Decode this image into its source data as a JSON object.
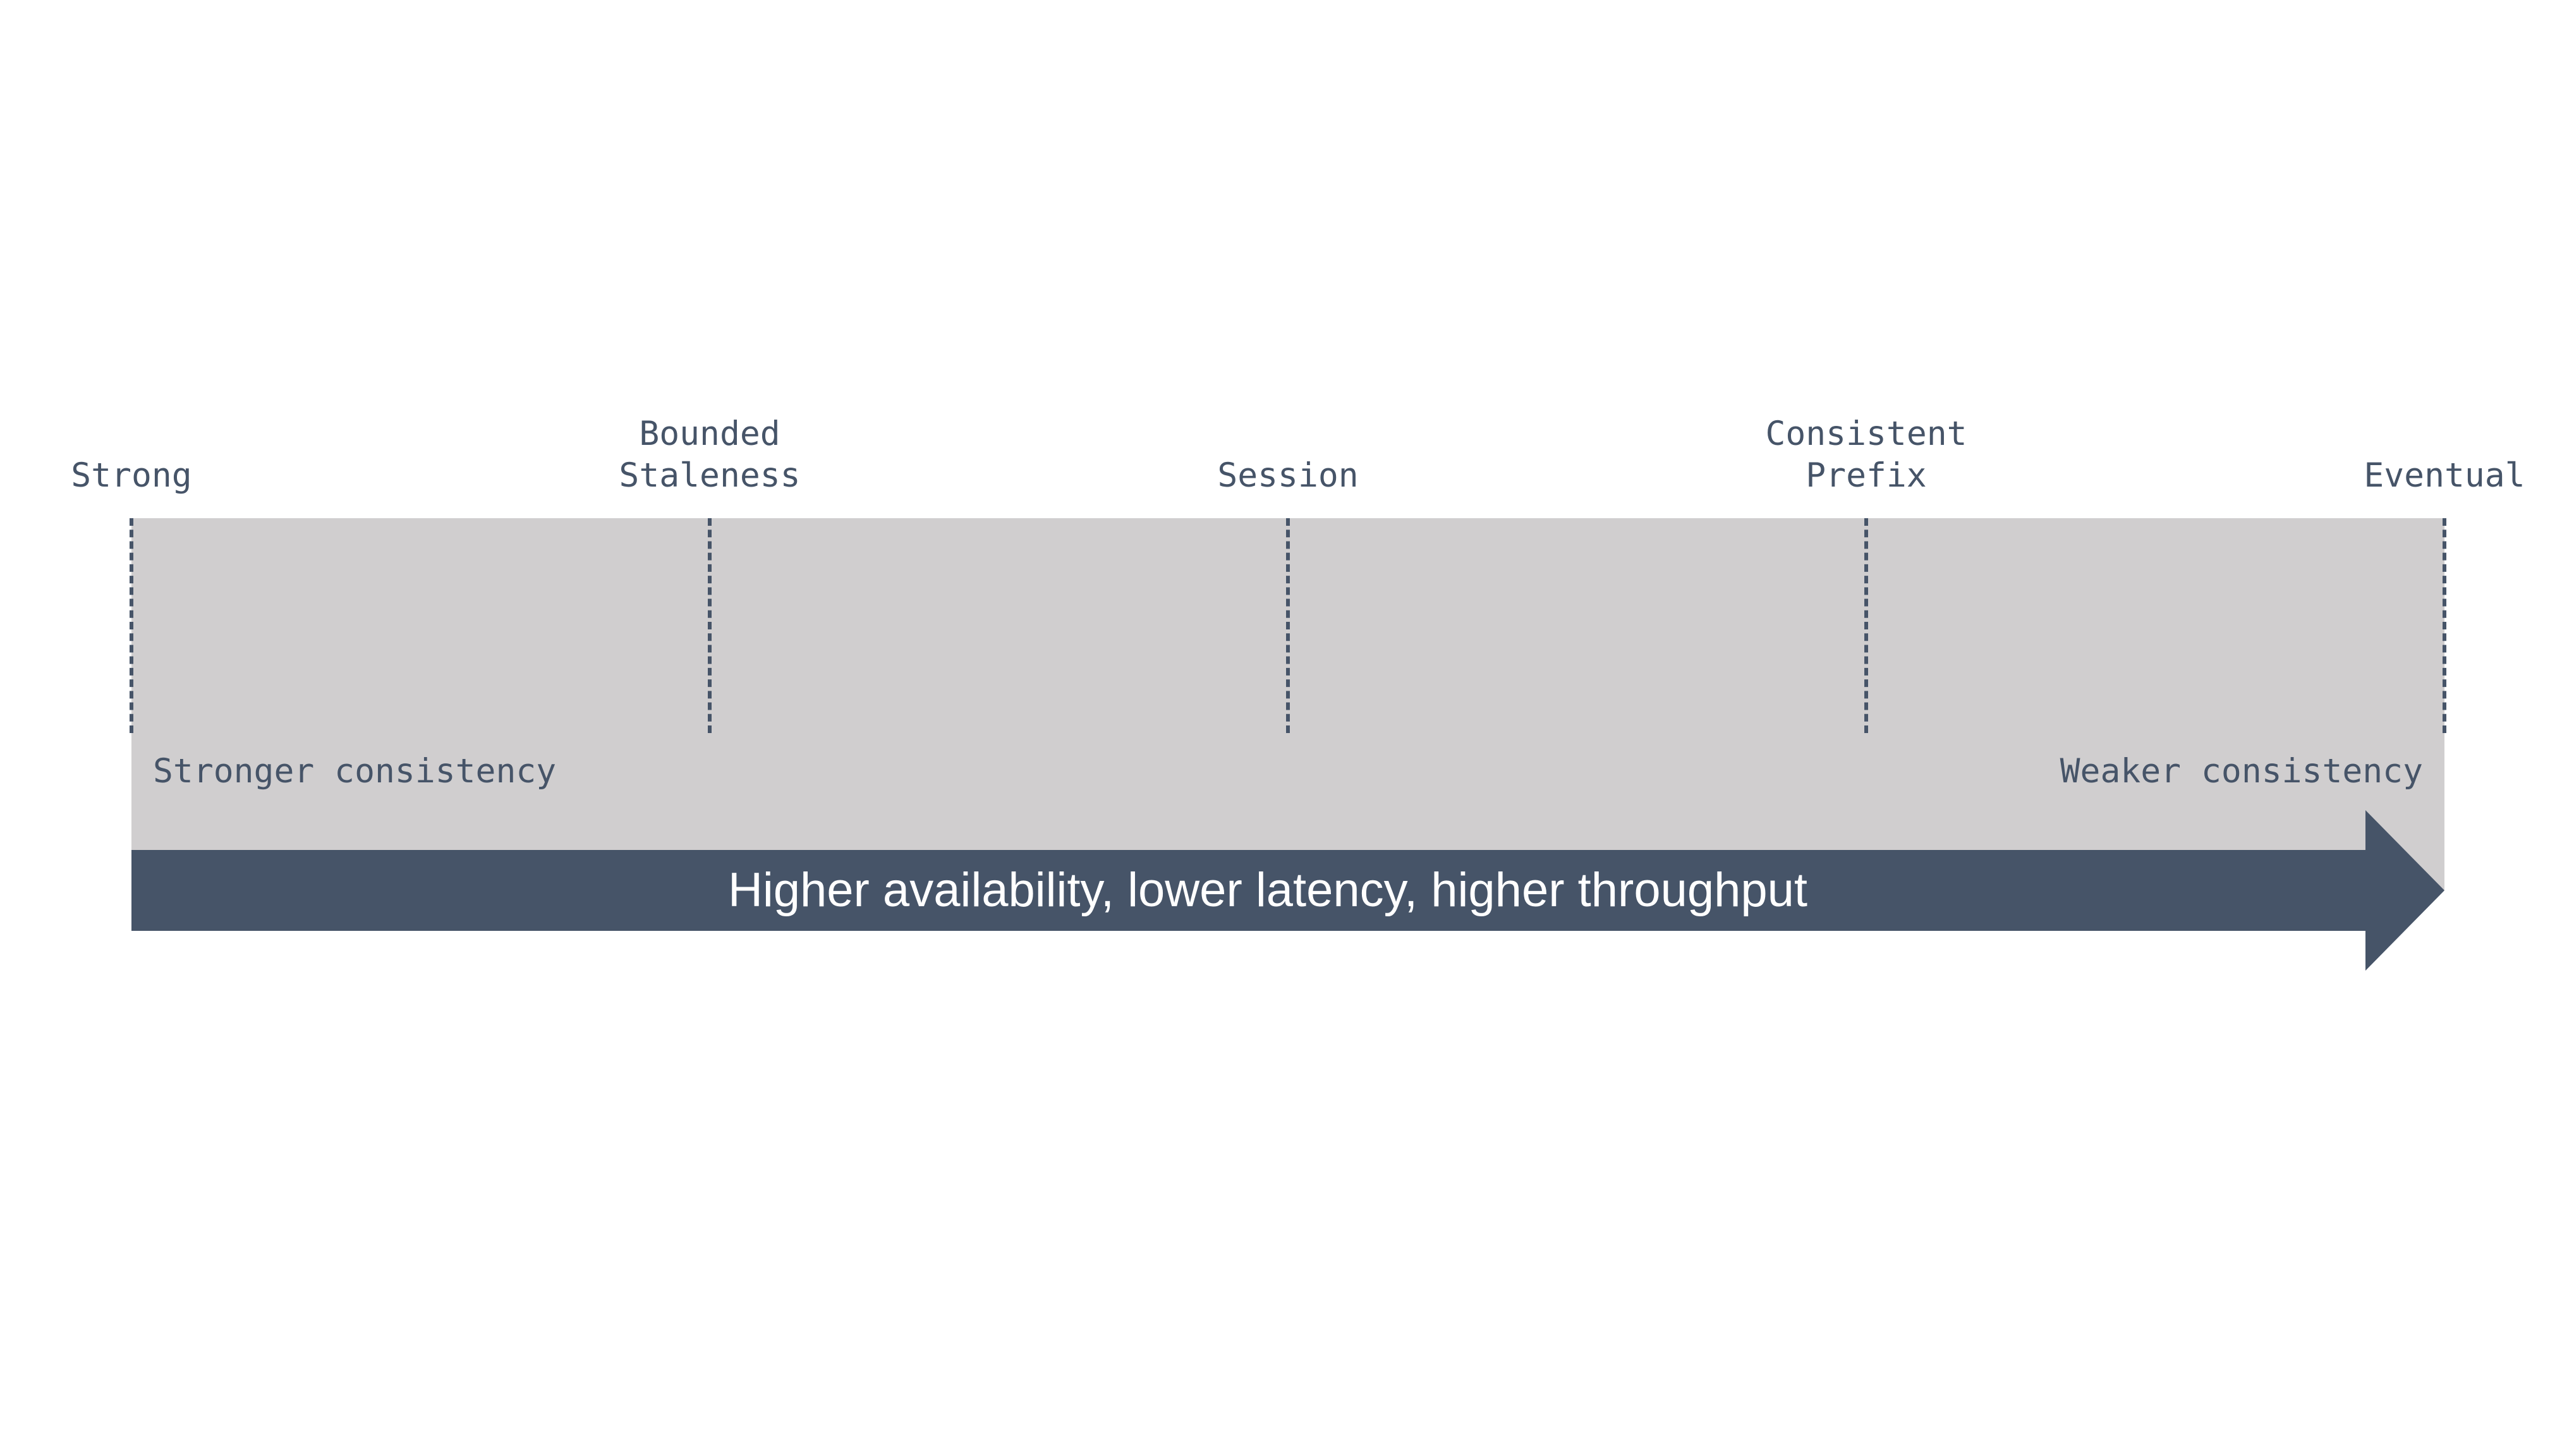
{
  "diagram": {
    "levels": [
      {
        "id": "strong",
        "label_line1": "Strong",
        "label_line2": ""
      },
      {
        "id": "bounded-staleness",
        "label_line1": "Bounded",
        "label_line2": "Staleness"
      },
      {
        "id": "session",
        "label_line1": "Session",
        "label_line2": ""
      },
      {
        "id": "consistent-prefix",
        "label_line1": "Consistent",
        "label_line2": "Prefix"
      },
      {
        "id": "eventual",
        "label_line1": "Eventual",
        "label_line2": ""
      }
    ],
    "left_caption": "Stronger consistency",
    "right_caption": "Weaker consistency",
    "arrow_text": "Higher availability, lower latency, higher throughput",
    "colors": {
      "band": "#d0cecf",
      "arrow": "#465468",
      "text": "#465468",
      "arrow_text": "#ffffff"
    }
  }
}
